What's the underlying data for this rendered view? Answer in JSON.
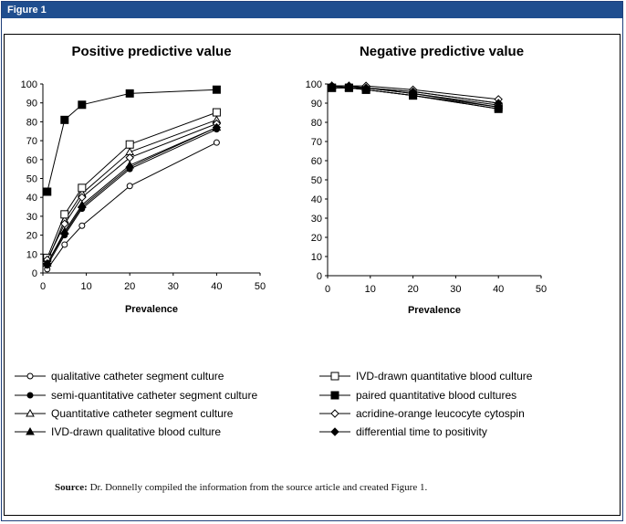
{
  "header": {
    "title": "Figure 1"
  },
  "source": {
    "label": "Source:",
    "text": "Dr. Donnelly compiled the information from the source article and created Figure 1."
  },
  "chart_data": [
    {
      "type": "line",
      "title": "Positive predictive value",
      "xlabel": "Prevalence",
      "ylabel": "",
      "xlim": [
        0,
        50
      ],
      "ylim": [
        0,
        100
      ],
      "xticks": [
        0,
        10,
        20,
        30,
        40,
        50
      ],
      "yticks": [
        0,
        10,
        20,
        30,
        40,
        50,
        60,
        70,
        80,
        90,
        100
      ],
      "x": [
        1,
        5,
        9,
        20,
        40
      ],
      "series": [
        {
          "name": "qualitative catheter segment culture",
          "marker": "circle-open",
          "values": [
            2,
            15,
            25,
            46,
            69
          ]
        },
        {
          "name": "semi-quantitative catheter segment culture",
          "marker": "circle-filled",
          "values": [
            4,
            20,
            34,
            55,
            76
          ]
        },
        {
          "name": "Quantitative catheter segment culture",
          "marker": "triangle-open",
          "values": [
            6,
            28,
            42,
            64,
            81
          ]
        },
        {
          "name": "IVD-drawn qualitative blood culture",
          "marker": "triangle-filled",
          "values": [
            5,
            22,
            36,
            57,
            77
          ]
        },
        {
          "name": "IVD-drawn quantitative blood culture",
          "marker": "square-open",
          "values": [
            8,
            31,
            45,
            68,
            85
          ]
        },
        {
          "name": "paired quantitative blood cultures",
          "marker": "square-filled",
          "values": [
            43,
            81,
            89,
            95,
            97
          ]
        },
        {
          "name": "acridine-orange leucocyte cytospin",
          "marker": "diamond-open",
          "values": [
            7,
            26,
            40,
            61,
            79
          ]
        },
        {
          "name": "differential time to positivity",
          "marker": "diamond-filled",
          "values": [
            5,
            21,
            35,
            56,
            77
          ]
        }
      ]
    },
    {
      "type": "line",
      "title": "Negative predictive value",
      "xlabel": "Prevalence",
      "ylabel": "",
      "xlim": [
        0,
        50
      ],
      "ylim": [
        0,
        100
      ],
      "xticks": [
        0,
        10,
        20,
        30,
        40,
        50
      ],
      "yticks": [
        0,
        10,
        20,
        30,
        40,
        50,
        60,
        70,
        80,
        90,
        100
      ],
      "x": [
        1,
        5,
        9,
        20,
        40
      ],
      "series": [
        {
          "name": "qualitative catheter segment culture",
          "marker": "circle-open",
          "values": [
            99,
            98,
            97,
            94,
            87
          ]
        },
        {
          "name": "semi-quantitative catheter segment culture",
          "marker": "circle-filled",
          "values": [
            99,
            98,
            98,
            95,
            88
          ]
        },
        {
          "name": "Quantitative catheter segment culture",
          "marker": "triangle-open",
          "values": [
            99,
            99,
            98,
            96,
            90
          ]
        },
        {
          "name": "IVD-drawn qualitative blood culture",
          "marker": "triangle-filled",
          "values": [
            99,
            98,
            98,
            95,
            89
          ]
        },
        {
          "name": "IVD-drawn quantitative blood culture",
          "marker": "square-open",
          "values": [
            98,
            98,
            97,
            94,
            88
          ]
        },
        {
          "name": "paired quantitative blood cultures",
          "marker": "square-filled",
          "values": [
            98,
            98,
            97,
            94,
            87
          ]
        },
        {
          "name": "acridine-orange leucocyte cytospin",
          "marker": "diamond-open",
          "values": [
            99,
            99,
            99,
            97,
            92
          ]
        },
        {
          "name": "differential time to positivity",
          "marker": "diamond-filled",
          "values": [
            99,
            99,
            98,
            96,
            90
          ]
        }
      ]
    }
  ]
}
